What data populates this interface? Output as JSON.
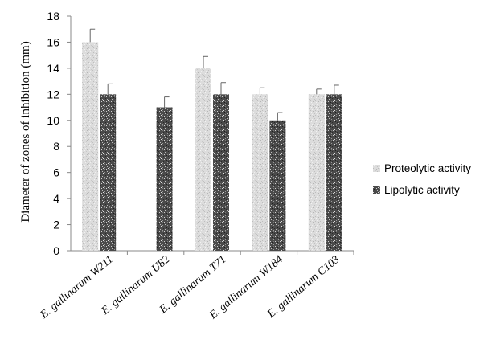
{
  "chart_data": {
    "type": "bar",
    "ylabel": "Diameter of zones of inhibition (mm)",
    "xlabel": "",
    "ylim": [
      0,
      18
    ],
    "ytick_step": 2,
    "yticks": [
      "0",
      "2",
      "4",
      "6",
      "8",
      "10",
      "12",
      "14",
      "16",
      "18"
    ],
    "categories": [
      "E. gallinarum W211",
      "E. gallinarum U82",
      "E. gallinarum T71",
      "E. gallinarum W184",
      "E. gallinarum C103"
    ],
    "series": [
      {
        "name": "Proteolytic activity",
        "values": [
          16,
          0,
          14,
          12,
          12
        ],
        "errors": [
          1.0,
          null,
          0.9,
          0.5,
          0.4
        ],
        "color": "#d9d9d9"
      },
      {
        "name": "Lipolytic activity",
        "values": [
          12,
          11,
          12,
          10,
          12
        ],
        "errors": [
          0.8,
          0.8,
          0.9,
          0.6,
          0.7
        ],
        "color": "#4a4a4a"
      }
    ],
    "grid": false,
    "legend_position": "right"
  }
}
